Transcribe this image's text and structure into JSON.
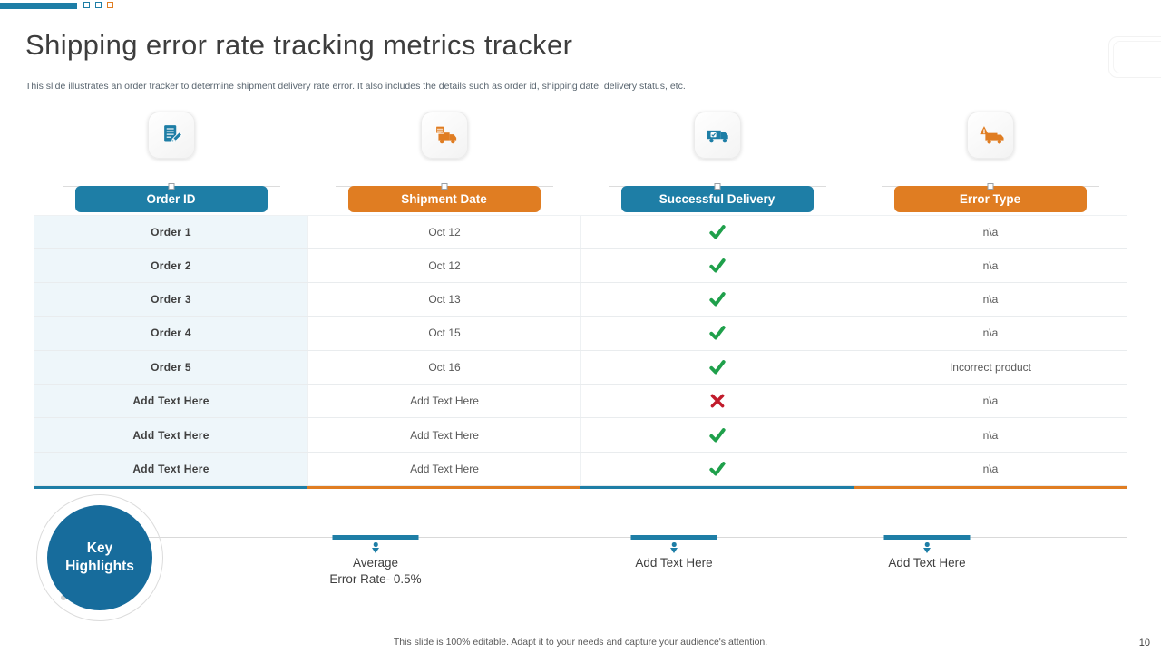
{
  "slide": {
    "title": "Shipping error rate tracking metrics tracker",
    "subtitle": "This slide illustrates an order tracker to determine shipment delivery rate error. It also includes the details such as order id, shipping date, delivery status, etc.",
    "footer": "This slide is 100% editable.  Adapt it to your needs and capture your audience's attention.",
    "page_number": "10"
  },
  "colors": {
    "primary_blue": "#1E7EA6",
    "primary_orange": "#E07D22",
    "circle_blue": "#176C9C",
    "success_green": "#1FA04B",
    "error_red": "#C11B2B",
    "column_tint": "#EEF6FA"
  },
  "table": {
    "columns": [
      {
        "label": "Order ID",
        "color": "#1E7EA6",
        "icon": "order-document-icon"
      },
      {
        "label": "Shipment Date",
        "color": "#E07D22",
        "icon": "shipment-truck-calendar-icon"
      },
      {
        "label": "Successful Delivery",
        "color": "#1E7EA6",
        "icon": "delivery-truck-icon"
      },
      {
        "label": "Error Type",
        "color": "#E07D22",
        "icon": "error-truck-warning-icon"
      }
    ],
    "rows": [
      {
        "order_id": "Order 1",
        "shipment_date": "Oct 12",
        "successful_delivery": "yes",
        "error_type": "n\\a"
      },
      {
        "order_id": "Order 2",
        "shipment_date": "Oct 12",
        "successful_delivery": "yes",
        "error_type": "n\\a"
      },
      {
        "order_id": "Order 3",
        "shipment_date": "Oct 13",
        "successful_delivery": "yes",
        "error_type": "n\\a"
      },
      {
        "order_id": "Order 4",
        "shipment_date": "Oct 15",
        "successful_delivery": "yes",
        "error_type": "n\\a"
      },
      {
        "order_id": "Order 5",
        "shipment_date": "Oct 16",
        "successful_delivery": "yes",
        "error_type": "Incorrect product"
      },
      {
        "order_id": "Add Text Here",
        "shipment_date": "Add Text  Here",
        "successful_delivery": "no",
        "error_type": "n\\a"
      },
      {
        "order_id": "Add Text Here",
        "shipment_date": "Add Text  Here",
        "successful_delivery": "yes",
        "error_type": "n\\a"
      },
      {
        "order_id": "Add Text Here",
        "shipment_date": "Add Text  Here",
        "successful_delivery": "yes",
        "error_type": "n\\a"
      }
    ],
    "placeholder_text": "Add Text Here"
  },
  "key_highlights": {
    "label": "Key Highlights",
    "items": [
      "Average\nError Rate- 0.5%",
      "Add Text Here",
      "Add Text Here"
    ]
  }
}
